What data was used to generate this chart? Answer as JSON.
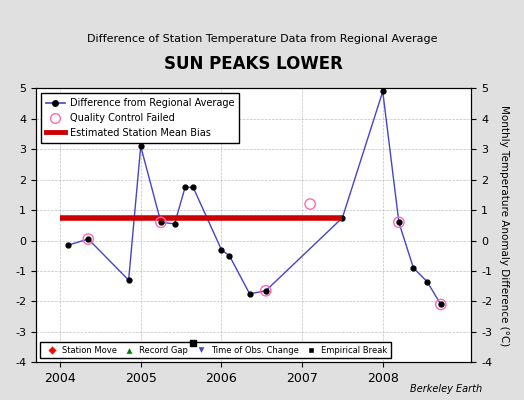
{
  "title": "SUN PEAKS LOWER",
  "subtitle": "Difference of Station Temperature Data from Regional Average",
  "ylabel_right": "Monthly Temperature Anomaly Difference (°C)",
  "xlim": [
    2003.7,
    2009.1
  ],
  "ylim": [
    -4,
    5
  ],
  "yticks": [
    -4,
    -3,
    -2,
    -1,
    0,
    1,
    2,
    3,
    4,
    5
  ],
  "xticks": [
    2004,
    2005,
    2006,
    2007,
    2008
  ],
  "bg_color": "#e0e0e0",
  "plot_bg_color": "#ffffff",
  "bias_line_y": 0.75,
  "bias_line_x_start": 2004.0,
  "bias_line_x_end": 2007.5,
  "line_x": [
    2004.1,
    2004.35,
    2004.85,
    2005.0,
    2005.25,
    2005.42,
    2005.55,
    2005.65,
    2006.0,
    2006.1,
    2006.35,
    2006.55,
    2007.5,
    2008.0,
    2008.2,
    2008.38,
    2008.55,
    2008.72
  ],
  "line_y": [
    -0.15,
    0.05,
    -1.3,
    3.1,
    0.6,
    0.55,
    1.75,
    1.75,
    -0.3,
    -0.5,
    -1.75,
    -1.65,
    0.75,
    4.9,
    0.6,
    -0.9,
    -1.35,
    -2.1
  ],
  "qc_failed_x": [
    2004.35,
    2005.25,
    2006.55,
    2007.1,
    2008.2,
    2008.72
  ],
  "qc_failed_y": [
    0.05,
    0.6,
    -1.65,
    1.2,
    0.6,
    -2.1
  ],
  "empirical_break_x": [
    2005.65
  ],
  "empirical_break_y": [
    -3.35
  ],
  "line_color": "#4444cc",
  "line_width": 1.0,
  "marker_color": "black",
  "marker_size": 3.5,
  "qc_color": "#ff69b4",
  "bias_color": "#cc0000",
  "bias_linewidth": 4.0,
  "footer": "Berkeley Earth",
  "legend_top": [
    "Difference from Regional Average",
    "Quality Control Failed",
    "Estimated Station Mean Bias"
  ],
  "legend_bottom": [
    "Station Move",
    "Record Gap",
    "Time of Obs. Change",
    "Empirical Break"
  ]
}
